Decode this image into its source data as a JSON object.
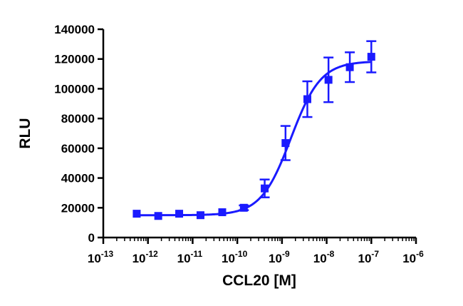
{
  "chart_data": {
    "type": "scatter",
    "xlabel": "CCL20 [M]",
    "ylabel": "RLU",
    "x_scale": "log10",
    "xlim_exponents": [
      -13,
      -6
    ],
    "x_tick_base": "10",
    "x_tick_exponents": [
      "-13",
      "-12",
      "-11",
      "-10",
      "-9",
      "-8",
      "-7",
      "-6"
    ],
    "ylim": [
      0,
      140000
    ],
    "y_ticks": [
      "0",
      "20000",
      "40000",
      "60000",
      "80000",
      "100000",
      "120000",
      "140000"
    ],
    "grid": false,
    "series_color": "#1a1aff",
    "marker": "square",
    "fit_curve": {
      "model": "four-parameter logistic",
      "bottom": 15000,
      "top": 118500,
      "log_ec50": -8.8,
      "hill_slope": 1.3
    },
    "series": [
      {
        "x": [
          5.6e-13,
          1.7e-12,
          5e-12,
          1.5e-11,
          4.6e-11,
          1.4e-10,
          4.1e-10,
          1.2e-09,
          3.7e-09,
          1.1e-08,
          3.3e-08,
          1e-07
        ],
        "y": [
          16000,
          14500,
          16000,
          15000,
          17000,
          20000,
          33000,
          63500,
          93000,
          106000,
          114500,
          121500
        ],
        "err": [
          600,
          600,
          600,
          600,
          600,
          1600,
          6000,
          11500,
          12000,
          15000,
          10000,
          10500
        ]
      }
    ]
  }
}
